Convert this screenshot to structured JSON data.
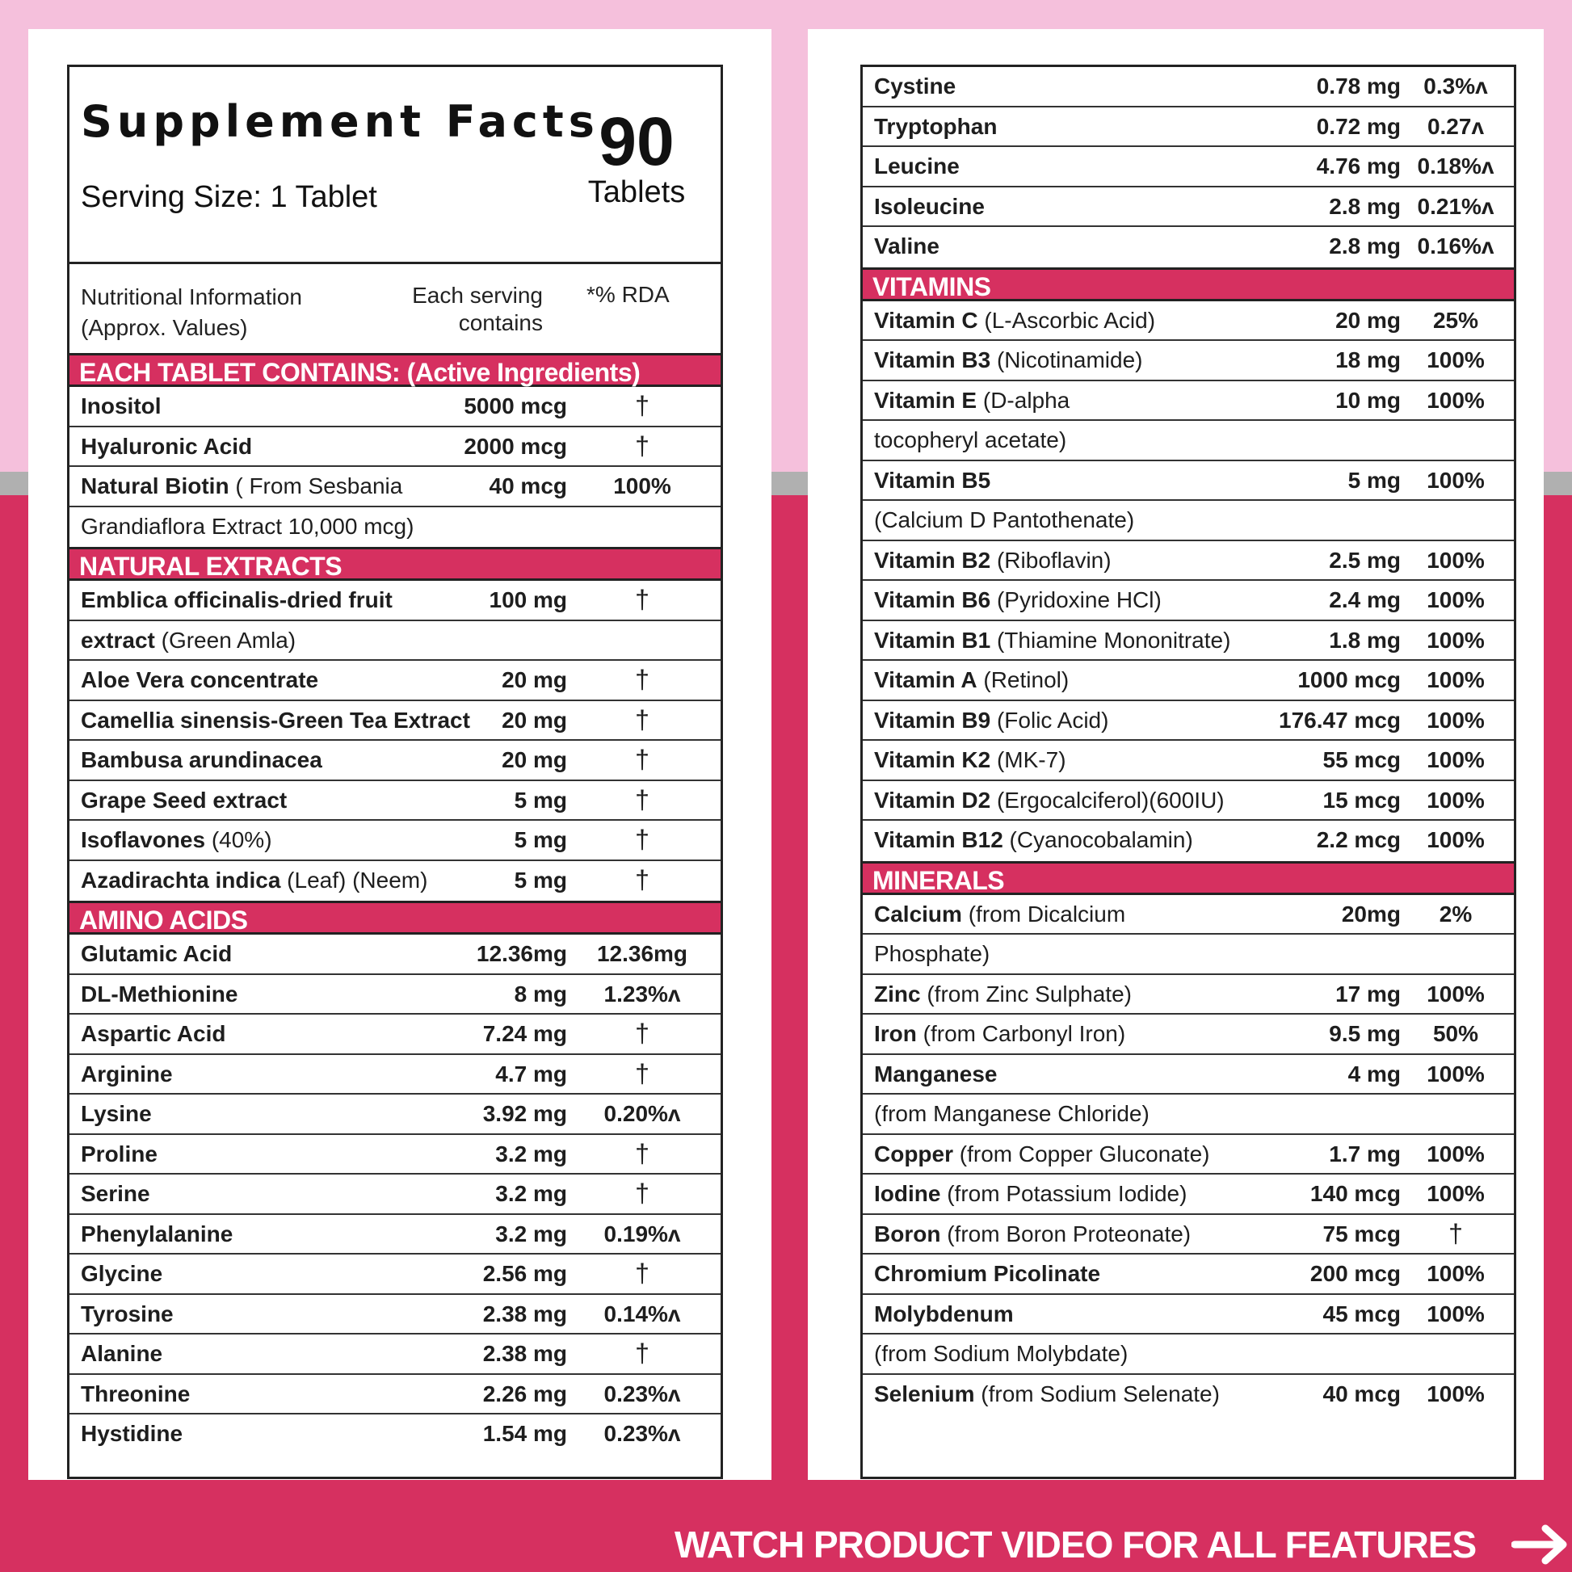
{
  "colors": {
    "accent": "#d63060",
    "bg_top": "#f5c0dc",
    "divider": "#b0b0b0",
    "border": "#222222"
  },
  "header": {
    "title": "Supplement Facts",
    "serving_size": "Serving Size: 1 Tablet",
    "count_number": "90",
    "count_label": "Tablets",
    "col1_line1": "Nutritional Information",
    "col1_line2": "(Approx. Values)",
    "col2_line1": "Each serving",
    "col2_line2": "contains",
    "col3": "*% RDA"
  },
  "left": {
    "active_title": "EACH TABLET CONTAINS: (Active Ingredients)",
    "active": [
      {
        "name": "Inositol",
        "extra": "",
        "amount": "5000 mcg",
        "rda": "†"
      },
      {
        "name": "Hyaluronic Acid",
        "extra": "",
        "amount": "2000 mcg",
        "rda": "†"
      },
      {
        "name": "Natural Biotin",
        "extra": " ( From Sesbania",
        "amount": "40 mcg",
        "rda": "100%"
      },
      {
        "name": "",
        "extra": "Grandiaflora Extract 10,000 mcg)",
        "amount": "",
        "rda": ""
      }
    ],
    "extracts_title": "NATURAL EXTRACTS",
    "extracts": [
      {
        "name": "Emblica officinalis-dried fruit",
        "extra": "",
        "amount": "100 mg",
        "rda": "†"
      },
      {
        "name": "extract",
        "extra": " (Green Amla)",
        "amount": "",
        "rda": ""
      },
      {
        "name": "Aloe Vera concentrate",
        "extra": "",
        "amount": "20 mg",
        "rda": "†"
      },
      {
        "name": "Camellia sinensis-Green Tea Extract",
        "extra": "",
        "amount": "20 mg",
        "rda": "†"
      },
      {
        "name": "Bambusa arundinacea",
        "extra": "",
        "amount": "20 mg",
        "rda": "†"
      },
      {
        "name": "Grape Seed extract",
        "extra": "",
        "amount": "5 mg",
        "rda": "†"
      },
      {
        "name": "Isoflavones",
        "extra": " (40%)",
        "amount": "5 mg",
        "rda": "†"
      },
      {
        "name": "Azadirachta indica",
        "extra": " (Leaf) (Neem)",
        "amount": "5 mg",
        "rda": "†"
      }
    ],
    "amino_title": "AMINO ACIDS",
    "amino": [
      {
        "name": "Glutamic Acid",
        "amount": "12.36mg",
        "rda": "12.36mg"
      },
      {
        "name": "DL-Methionine",
        "amount": "8 mg",
        "rda": "1.23%^"
      },
      {
        "name": "Aspartic Acid",
        "amount": "7.24 mg",
        "rda": "†"
      },
      {
        "name": "Arginine",
        "amount": "4.7 mg",
        "rda": "†"
      },
      {
        "name": "Lysine",
        "amount": "3.92 mg",
        "rda": "0.20%^"
      },
      {
        "name": "Proline",
        "amount": "3.2 mg",
        "rda": "†"
      },
      {
        "name": "Serine",
        "amount": "3.2 mg",
        "rda": "†"
      },
      {
        "name": "Phenylalanine",
        "amount": "3.2 mg",
        "rda": "0.19%^"
      },
      {
        "name": "Glycine",
        "amount": "2.56 mg",
        "rda": "†"
      },
      {
        "name": "Tyrosine",
        "amount": "2.38 mg",
        "rda": "0.14%^"
      },
      {
        "name": "Alanine",
        "amount": "2.38 mg",
        "rda": "†"
      },
      {
        "name": "Threonine",
        "amount": "2.26 mg",
        "rda": "0.23%^"
      },
      {
        "name": "Hystidine",
        "amount": "1.54 mg",
        "rda": "0.23%^"
      }
    ]
  },
  "right": {
    "amino_cont": [
      {
        "name": "Cystine",
        "extra": "",
        "amount": "0.78 mg",
        "rda": "0.3%^"
      },
      {
        "name": "Tryptophan",
        "extra": "",
        "amount": "0.72 mg",
        "rda": "0.27^"
      },
      {
        "name": "Leucine",
        "extra": "",
        "amount": "4.76 mg",
        "rda": "0.18%^"
      },
      {
        "name": "Isoleucine",
        "extra": "",
        "amount": "2.8 mg",
        "rda": "0.21%^"
      },
      {
        "name": "Valine",
        "extra": "",
        "amount": "2.8 mg",
        "rda": "0.16%^"
      }
    ],
    "vitamins_title": "VITAMINS",
    "vitamins": [
      {
        "name": "Vitamin C",
        "extra": " (L-Ascorbic Acid)",
        "amount": "20 mg",
        "rda": "25%"
      },
      {
        "name": "Vitamin B3",
        "extra": " (Nicotinamide)",
        "amount": "18 mg",
        "rda": "100%"
      },
      {
        "name": "Vitamin E",
        "extra": " (D-alpha",
        "amount": "10 mg",
        "rda": "100%"
      },
      {
        "name": "",
        "extra": "tocopheryl acetate)",
        "amount": "",
        "rda": ""
      },
      {
        "name": "Vitamin B5",
        "extra": "",
        "amount": "5 mg",
        "rda": "100%"
      },
      {
        "name": "",
        "extra": "(Calcium D Pantothenate)",
        "amount": "",
        "rda": ""
      },
      {
        "name": "Vitamin B2",
        "extra": " (Riboflavin)",
        "amount": "2.5 mg",
        "rda": "100%"
      },
      {
        "name": "Vitamin B6",
        "extra": " (Pyridoxine HCl)",
        "amount": "2.4 mg",
        "rda": "100%"
      },
      {
        "name": "Vitamin B1",
        "extra": " (Thiamine Mononitrate)",
        "amount": "1.8 mg",
        "rda": "100%"
      },
      {
        "name": "Vitamin A",
        "extra": " (Retinol)",
        "amount": "1000 mcg",
        "rda": "100%"
      },
      {
        "name": "Vitamin B9",
        "extra": " (Folic Acid)",
        "amount": "176.47 mcg",
        "rda": "100%"
      },
      {
        "name": "Vitamin K2",
        "extra": " (MK-7)",
        "amount": "55 mcg",
        "rda": "100%"
      },
      {
        "name": "Vitamin D2",
        "extra": " (Ergocalciferol)(600IU)",
        "amount": "15 mcg",
        "rda": "100%"
      },
      {
        "name": "Vitamin B12",
        "extra": " (Cyanocobalamin)",
        "amount": "2.2 mcg",
        "rda": "100%"
      }
    ],
    "minerals_title": "MINERALS",
    "minerals": [
      {
        "name": "Calcium",
        "extra": " (from Dicalcium",
        "amount": "20mg",
        "rda": "2%"
      },
      {
        "name": "",
        "extra": "Phosphate)",
        "amount": "",
        "rda": ""
      },
      {
        "name": "Zinc",
        "extra": " (from Zinc Sulphate)",
        "amount": "17 mg",
        "rda": "100%"
      },
      {
        "name": "Iron",
        "extra": " (from Carbonyl Iron)",
        "amount": "9.5 mg",
        "rda": "50%"
      },
      {
        "name": "Manganese",
        "extra": "",
        "amount": "4 mg",
        "rda": "100%"
      },
      {
        "name": "",
        "extra": "(from Manganese Chloride)",
        "amount": "",
        "rda": ""
      },
      {
        "name": "Copper",
        "extra": " (from Copper Gluconate)",
        "amount": "1.7 mg",
        "rda": "100%"
      },
      {
        "name": "Iodine",
        "extra": " (from Potassium Iodide)",
        "amount": "140 mcg",
        "rda": "100%"
      },
      {
        "name": "Boron",
        "extra": " (from Boron Proteonate)",
        "amount": "75 mcg",
        "rda": "†"
      },
      {
        "name": "Chromium Picolinate",
        "extra": "",
        "amount": "200 mcg",
        "rda": "100%"
      },
      {
        "name": "Molybdenum",
        "extra": "",
        "amount": "45 mcg",
        "rda": "100%"
      },
      {
        "name": "",
        "extra": "(from Sodium Molybdate)",
        "amount": "",
        "rda": ""
      },
      {
        "name": "Selenium",
        "extra": " (from Sodium Selenate)",
        "amount": "40 mcg",
        "rda": "100%"
      }
    ]
  },
  "footer": {
    "cta": "WATCH PRODUCT VIDEO FOR ALL FEATURES",
    "icon": "arrow-right-icon"
  }
}
